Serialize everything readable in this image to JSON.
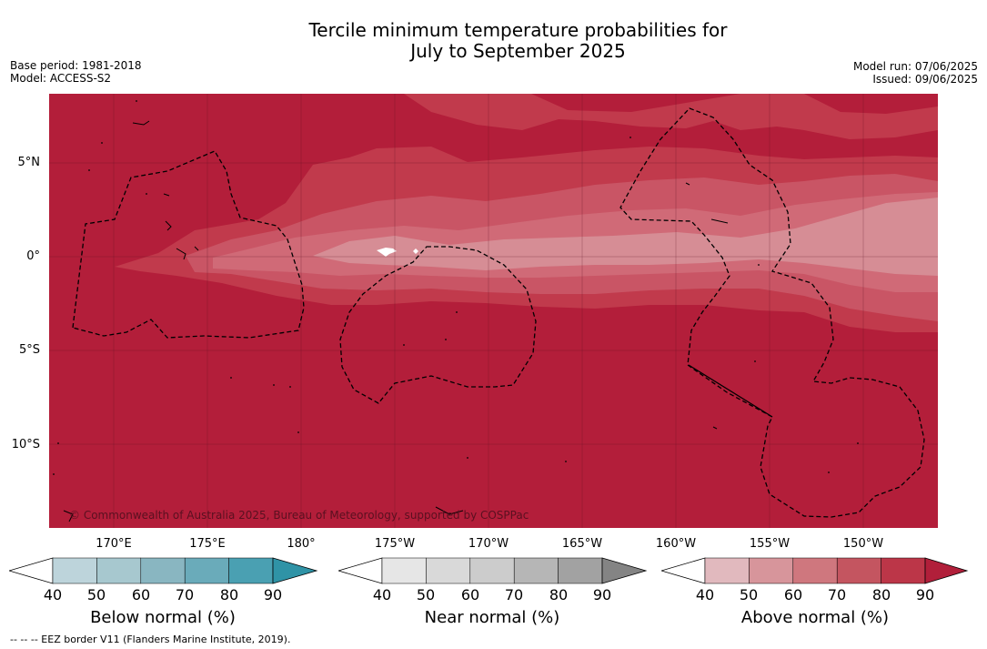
{
  "title_line1": "Tercile minimum temperature probabilities for",
  "title_line2": "July to September 2025",
  "base_period": "Base period: 1981-2018",
  "model": "Model: ACCESS-S2",
  "model_run": "Model run: 07/06/2025",
  "issued": "Issued: 09/06/2025",
  "lat_labels": [
    "5°N",
    "0°",
    "5°S",
    "10°S"
  ],
  "lon_labels": [
    "170°E",
    "175°E",
    "180°",
    "175°W",
    "170°W",
    "165°W",
    "160°W",
    "155°W",
    "150°W"
  ],
  "copyright": "© Commonwealth of Australia 2025, Bureau of Meteorology, supported by COSPPac",
  "footer": "--  --  -- EEZ border V11 (Flanders Marine Institute, 2019).",
  "colorbars": [
    {
      "title": "Below normal (%)",
      "ticks": [
        "40",
        "50",
        "60",
        "70",
        "80",
        "90"
      ],
      "colors": [
        "#bdd4db",
        "#a7c8cf",
        "#89b6c1",
        "#6aabba",
        "#4aa0b2",
        "#2f93a6"
      ]
    },
    {
      "title": "Near normal (%)",
      "ticks": [
        "40",
        "50",
        "60",
        "70",
        "80",
        "90"
      ],
      "colors": [
        "#e6e6e6",
        "#d9d9d9",
        "#cccccc",
        "#b6b6b6",
        "#a2a2a2",
        "#848484"
      ]
    },
    {
      "title": "Above normal (%)",
      "ticks": [
        "40",
        "50",
        "60",
        "70",
        "80",
        "90"
      ],
      "colors": [
        "#e1b9be",
        "#d7959b",
        "#cf777e",
        "#c45560",
        "#bc3648",
        "#b11f3a"
      ]
    }
  ],
  "colors": {
    "background_dominant": "#b31e3a",
    "band_70": "#c13a4c",
    "band_60": "#c95565",
    "band_50": "#d06a77",
    "band_40": "#d68d95",
    "near_normal_white": "#ffffff"
  }
}
